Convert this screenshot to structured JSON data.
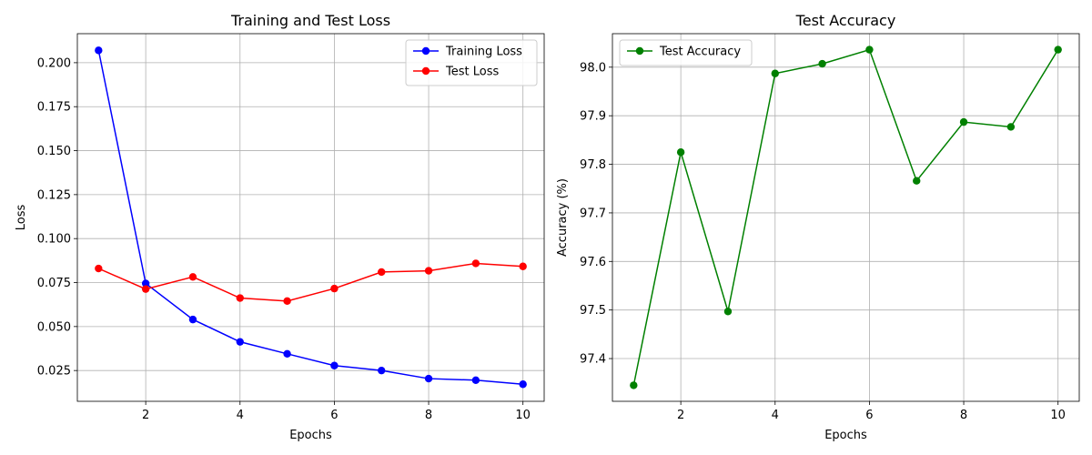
{
  "chart_data": [
    {
      "type": "line",
      "title": "Training and Test Loss",
      "xlabel": "Epochs",
      "ylabel": "Loss",
      "x": [
        1,
        2,
        3,
        4,
        5,
        6,
        7,
        8,
        9,
        10
      ],
      "xticks": [
        2,
        4,
        6,
        8,
        10
      ],
      "xtick_labels": [
        "2",
        "4",
        "6",
        "8",
        "10"
      ],
      "yticks": [
        0.025,
        0.05,
        0.075,
        0.1,
        0.125,
        0.15,
        0.175,
        0.2
      ],
      "ytick_labels": [
        "0.025",
        "0.050",
        "0.075",
        "0.100",
        "0.125",
        "0.150",
        "0.175",
        "0.200"
      ],
      "xlim": [
        0.55,
        10.45
      ],
      "ylim": [
        0.0075,
        0.2165
      ],
      "grid": true,
      "legend_position": "top-right",
      "series": [
        {
          "name": "Training Loss",
          "color": "#0000ff",
          "values": [
            0.207,
            0.0745,
            0.054,
            0.0413,
            0.0345,
            0.0278,
            0.025,
            0.0204,
            0.0195,
            0.0172
          ]
        },
        {
          "name": "Test Loss",
          "color": "#ff0000",
          "values": [
            0.083,
            0.0713,
            0.0782,
            0.0662,
            0.0645,
            0.0716,
            0.081,
            0.0817,
            0.0859,
            0.0842
          ]
        }
      ]
    },
    {
      "type": "line",
      "title": "Test Accuracy",
      "xlabel": "Epochs",
      "ylabel": "Accuracy (%)",
      "x": [
        1,
        2,
        3,
        4,
        5,
        6,
        7,
        8,
        9,
        10
      ],
      "xticks": [
        2,
        4,
        6,
        8,
        10
      ],
      "xtick_labels": [
        "2",
        "4",
        "6",
        "8",
        "10"
      ],
      "yticks": [
        97.4,
        97.5,
        97.6,
        97.7,
        97.8,
        97.9,
        98.0
      ],
      "ytick_labels": [
        "97.4",
        "97.5",
        "97.6",
        "97.7",
        "97.8",
        "97.9",
        "98.0"
      ],
      "xlim": [
        0.55,
        10.45
      ],
      "ylim": [
        97.312,
        98.069
      ],
      "grid": true,
      "legend_position": "top-left",
      "series": [
        {
          "name": "Test Accuracy",
          "color": "#008000",
          "values": [
            97.345,
            97.825,
            97.497,
            97.987,
            98.007,
            98.036,
            97.766,
            97.887,
            97.877,
            98.036
          ]
        }
      ]
    }
  ]
}
